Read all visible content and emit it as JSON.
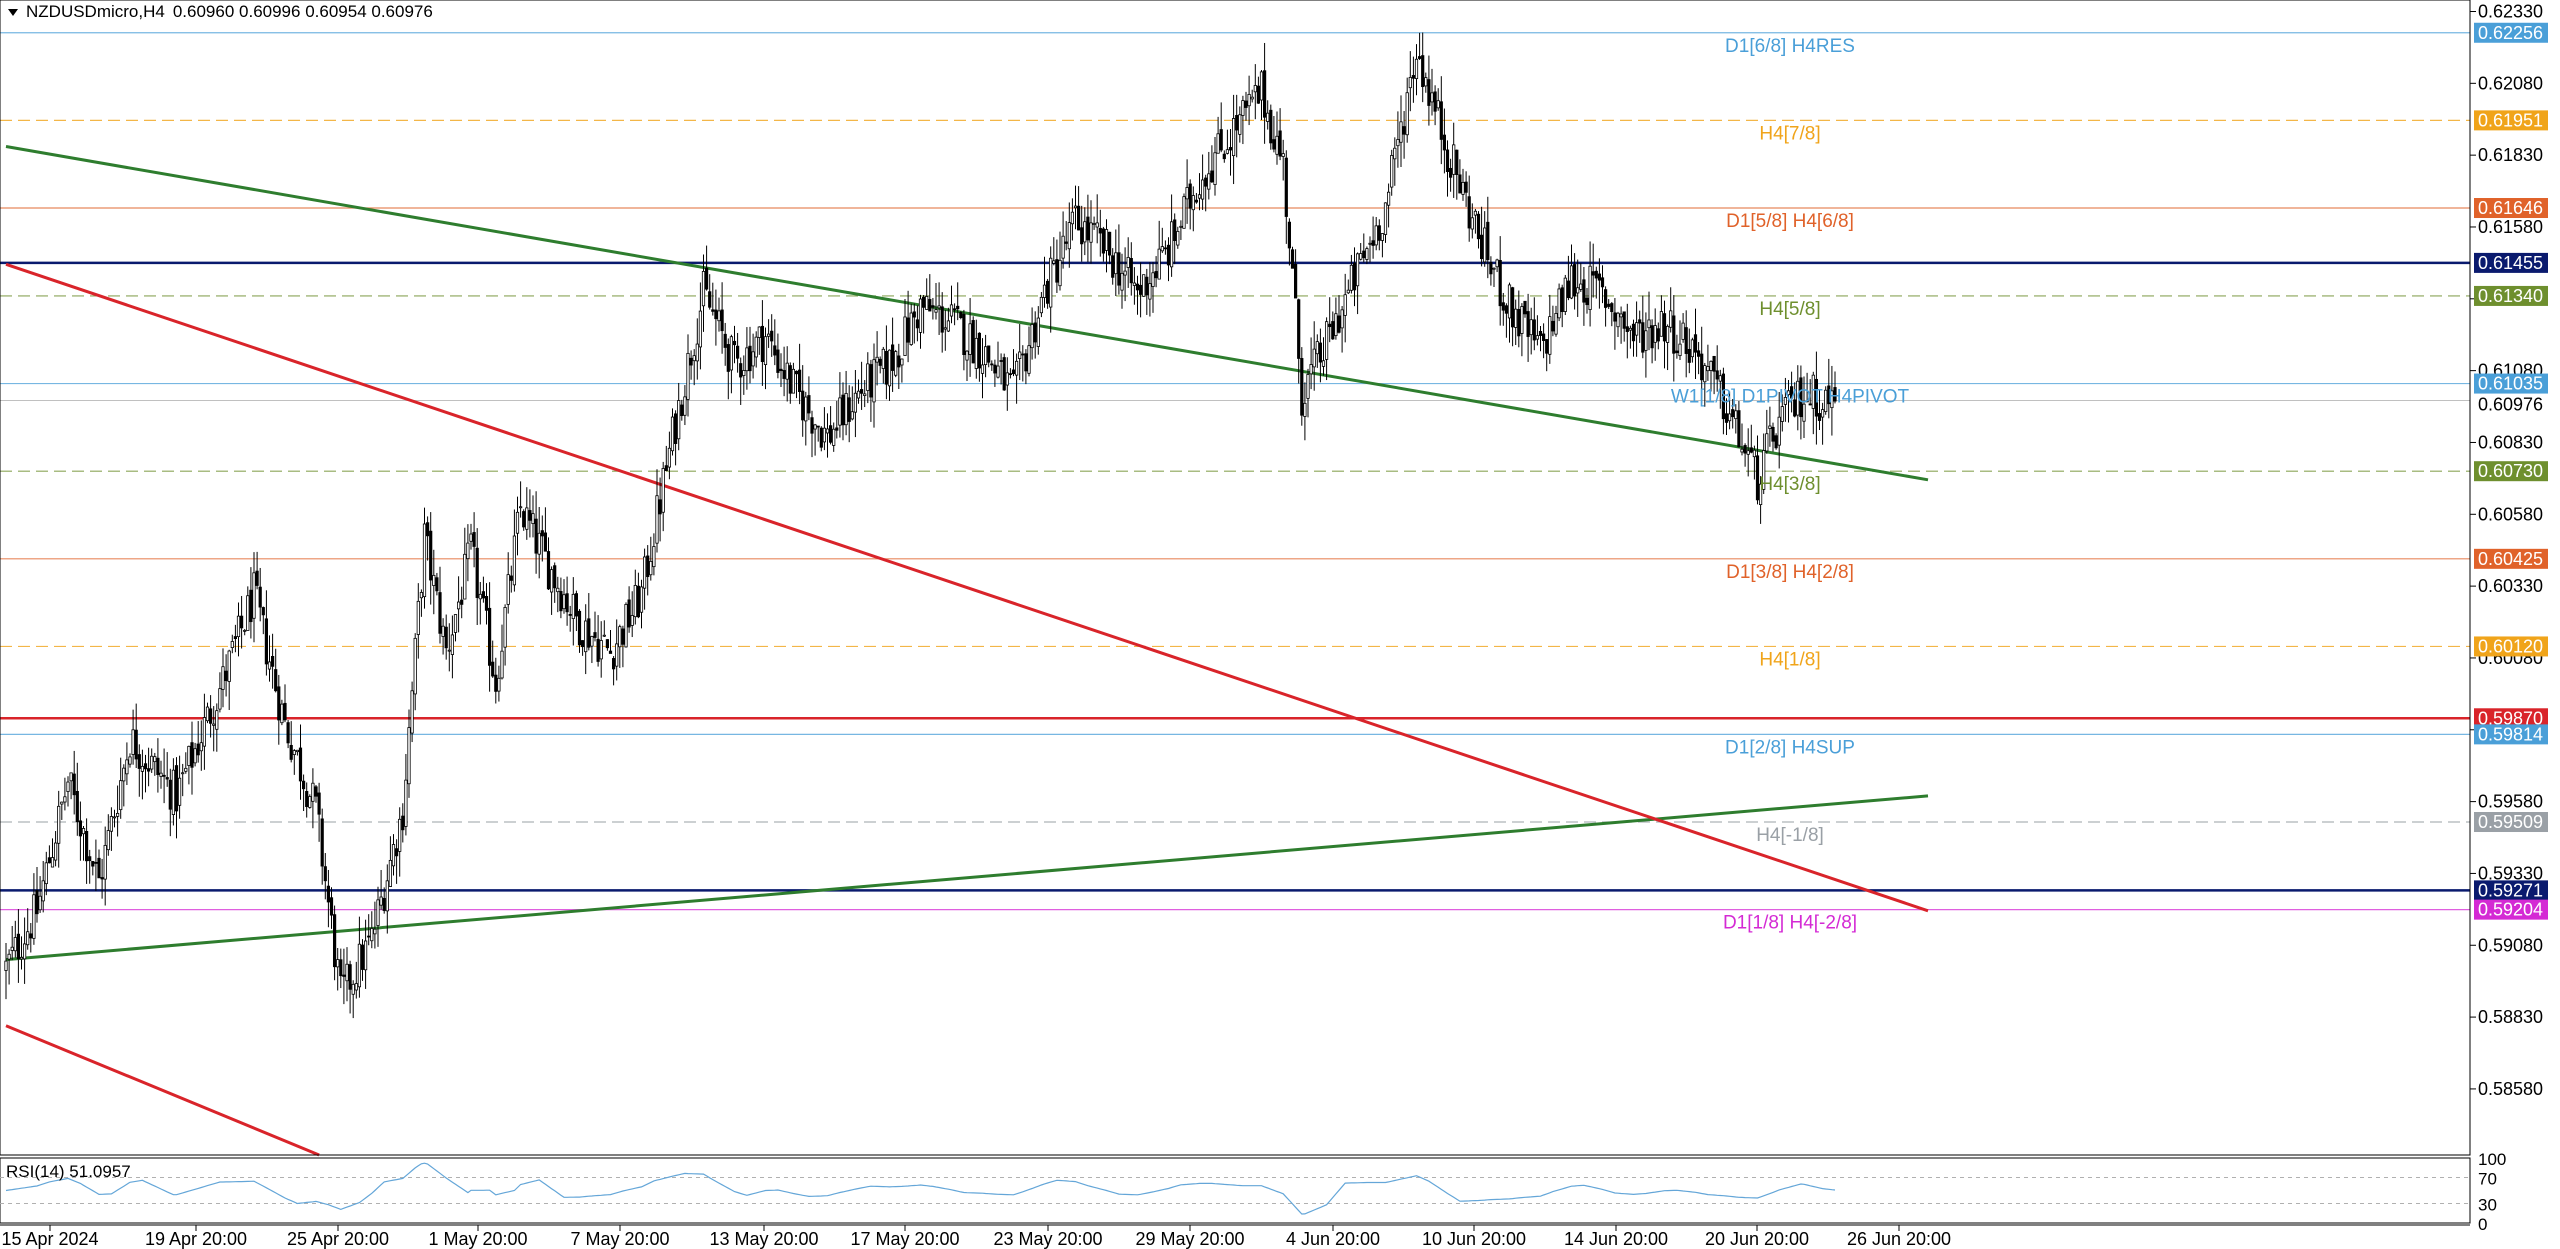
{
  "header": {
    "symbol_timeframe": "NZDUSDmicro,H4",
    "ohlc": "0.60960 0.60996 0.60954 0.60976"
  },
  "rsi": {
    "label": "RSI(14) 51.0957",
    "scale_labels": [
      "100",
      "70",
      "30",
      "0"
    ],
    "levels": [
      70,
      30
    ],
    "last_value": 51.0957,
    "color": "#64a6d8"
  },
  "chart_data": {
    "type": "candlestick",
    "symbol": "NZDUSDmicro",
    "timeframe": "H4",
    "ylim": [
      0.5835,
      0.6237
    ],
    "price_ticks": [
      "0.62330",
      "0.62080",
      "0.61830",
      "0.61580",
      "0.61330",
      "0.61080",
      "0.60830",
      "0.60580",
      "0.60330",
      "0.60080",
      "0.59830",
      "0.59580",
      "0.59330",
      "0.59080",
      "0.58830",
      "0.58580"
    ],
    "time_labels": [
      "15 Apr 2024",
      "19 Apr 20:00",
      "25 Apr 20:00",
      "1 May 20:00",
      "7 May 20:00",
      "13 May 20:00",
      "17 May 20:00",
      "23 May 20:00",
      "29 May 20:00",
      "4 Jun 20:00",
      "10 Jun 20:00",
      "14 Jun 20:00",
      "20 Jun 20:00",
      "26 Jun 20:00"
    ],
    "current_price": {
      "value": 0.60976,
      "label": "0.60976"
    },
    "close_path": [
      [
        0,
        0.59
      ],
      [
        10,
        0.592
      ],
      [
        20,
        0.5965
      ],
      [
        30,
        0.593
      ],
      [
        40,
        0.598
      ],
      [
        55,
        0.596
      ],
      [
        70,
        0.6
      ],
      [
        80,
        0.603
      ],
      [
        90,
        0.5985
      ],
      [
        100,
        0.5955
      ],
      [
        108,
        0.589
      ],
      [
        118,
        0.591
      ],
      [
        128,
        0.5955
      ],
      [
        135,
        0.605
      ],
      [
        142,
        0.601
      ],
      [
        150,
        0.6045
      ],
      [
        158,
        0.6
      ],
      [
        166,
        0.606
      ],
      [
        175,
        0.604
      ],
      [
        185,
        0.602
      ],
      [
        195,
        0.601
      ],
      [
        205,
        0.603
      ],
      [
        215,
        0.6085
      ],
      [
        225,
        0.6135
      ],
      [
        235,
        0.611
      ],
      [
        245,
        0.612
      ],
      [
        255,
        0.61
      ],
      [
        265,
        0.6085
      ],
      [
        275,
        0.61
      ],
      [
        285,
        0.611
      ],
      [
        295,
        0.613
      ],
      [
        305,
        0.6125
      ],
      [
        315,
        0.6115
      ],
      [
        325,
        0.61
      ],
      [
        335,
        0.6135
      ],
      [
        345,
        0.616
      ],
      [
        355,
        0.615
      ],
      [
        365,
        0.6135
      ],
      [
        375,
        0.615
      ],
      [
        385,
        0.6175
      ],
      [
        395,
        0.619
      ],
      [
        405,
        0.6205
      ],
      [
        412,
        0.618
      ],
      [
        418,
        0.61
      ],
      [
        425,
        0.6115
      ],
      [
        435,
        0.614
      ],
      [
        445,
        0.6165
      ],
      [
        455,
        0.622
      ],
      [
        465,
        0.6185
      ],
      [
        475,
        0.6155
      ],
      [
        485,
        0.613
      ],
      [
        495,
        0.6115
      ],
      [
        505,
        0.614
      ],
      [
        515,
        0.6135
      ],
      [
        525,
        0.612
      ],
      [
        535,
        0.6125
      ],
      [
        545,
        0.6115
      ],
      [
        555,
        0.6095
      ],
      [
        565,
        0.607
      ],
      [
        572,
        0.609
      ],
      [
        580,
        0.61
      ],
      [
        590,
        0.6097
      ]
    ],
    "horizontal_levels": [
      {
        "price": 0.62256,
        "label": "D1[6/8] H4RES",
        "price_label": "0.62256",
        "color": "#4a9fd8",
        "style": "solid"
      },
      {
        "price": 0.61951,
        "label": "H4[7/8]",
        "price_label": "0.61951",
        "color": "#f0a41a",
        "style": "dashed"
      },
      {
        "price": 0.61646,
        "label": "D1[5/8] H4[6/8]",
        "price_label": "0.61646",
        "color": "#e0622a",
        "style": "solid"
      },
      {
        "price": 0.61455,
        "label": "",
        "price_label": "0.61455",
        "color": "#0a1a6e",
        "style": "thick"
      },
      {
        "price": 0.6134,
        "label": "H4[5/8]",
        "price_label": "0.61340",
        "color": "#6e8f2e",
        "style": "dashed"
      },
      {
        "price": 0.61035,
        "label": "W1[1/8] D1PIVOT H4PIVOT",
        "price_label": "0.61035",
        "color": "#4a9fd8",
        "style": "solid"
      },
      {
        "price": 0.6073,
        "label": "H4[3/8]",
        "price_label": "0.60730",
        "color": "#6e8f2e",
        "style": "dashed"
      },
      {
        "price": 0.60425,
        "label": "D1[3/8] H4[2/8]",
        "price_label": "0.60425",
        "color": "#e0622a",
        "style": "solid"
      },
      {
        "price": 0.6012,
        "label": "H4[1/8]",
        "price_label": "0.60120",
        "color": "#f0a41a",
        "style": "dashed"
      },
      {
        "price": 0.5987,
        "label": "",
        "price_label": "0.59870",
        "color": "#d9242a",
        "style": "thick"
      },
      {
        "price": 0.59814,
        "label": "D1[2/8] H4SUP",
        "price_label": "0.59814",
        "color": "#4a9fd8",
        "style": "solid"
      },
      {
        "price": 0.59509,
        "label": "H4[-1/8]",
        "price_label": "0.59509",
        "color": "#9aa0a6",
        "style": "dashed"
      },
      {
        "price": 0.59271,
        "label": "",
        "price_label": "0.59271",
        "color": "#0a1a6e",
        "style": "thick"
      },
      {
        "price": 0.59204,
        "label": "D1[1/8] H4[-2/8]",
        "price_label": "0.59204",
        "color": "#d42ad4",
        "style": "solid"
      }
    ],
    "trendlines": [
      {
        "name": "green-upper",
        "color": "#2e7d2e",
        "from": [
          0,
          0.6186
        ],
        "to": [
          620,
          0.607
        ]
      },
      {
        "name": "green-lower",
        "color": "#2e7d2e",
        "from": [
          0,
          0.5903
        ],
        "to": [
          620,
          0.596
        ]
      },
      {
        "name": "red-upper",
        "color": "#d9242a",
        "from": [
          0,
          0.6145
        ],
        "to": [
          620,
          0.592
        ]
      },
      {
        "name": "red-lower",
        "color": "#d9242a",
        "from": [
          0,
          0.588
        ],
        "to": [
          101,
          0.5835
        ]
      }
    ]
  }
}
